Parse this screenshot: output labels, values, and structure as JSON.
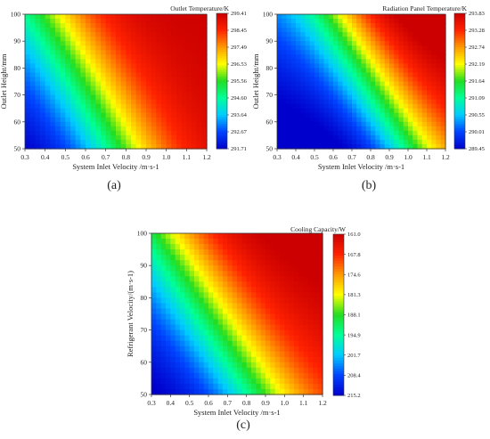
{
  "chart_data": [
    {
      "type": "heatmap",
      "panel_label": "(a)",
      "title": "Outlet Temperature/K",
      "xlabel": "System Inlet Velocity /m·s-1",
      "ylabel": "Outlet Height/mm",
      "x_ticks": [
        "0.3",
        "0.4",
        "0.5",
        "0.6",
        "0.7",
        "0.8",
        "0.9",
        "1.0",
        "1.1",
        "1.2"
      ],
      "y_ticks": [
        "50",
        "60",
        "70",
        "80",
        "90",
        "100"
      ],
      "xlim": [
        0.3,
        1.2
      ],
      "ylim": [
        50,
        100
      ],
      "colorbar": {
        "ticks": [
          "291.71",
          "292.67",
          "293.64",
          "294.60",
          "295.56",
          "296.53",
          "297.49",
          "298.45",
          "299.41"
        ],
        "min": 291.71,
        "max": 299.41,
        "colors": [
          "#0000cc",
          "#0044ff",
          "#00ccff",
          "#00ff99",
          "#22dd22",
          "#ffff00",
          "#ff9900",
          "#ff2200",
          "#cc0000"
        ]
      },
      "grid": false,
      "legend": "colorbar-right"
    },
    {
      "type": "heatmap",
      "panel_label": "(b)",
      "title": "Radiation Panel Temperature/K",
      "xlabel": "System Inlet Velocity /m·s-1",
      "ylabel": "Outlet Height/mm",
      "x_ticks": [
        "0.3",
        "0.4",
        "0.5",
        "0.6",
        "0.7",
        "0.8",
        "0.9",
        "1.0",
        "1.1",
        "1.2"
      ],
      "y_ticks": [
        "50",
        "60",
        "70",
        "80",
        "90",
        "100"
      ],
      "xlim": [
        0.3,
        1.2
      ],
      "ylim": [
        50,
        100
      ],
      "colorbar": {
        "ticks": [
          "289.45",
          "290.01",
          "290.55",
          "291.09",
          "291.64",
          "292.19",
          "292.74",
          "293.28",
          "293.83"
        ],
        "min": 289.45,
        "max": 293.83,
        "colors": [
          "#0000cc",
          "#0044ff",
          "#00ccff",
          "#00ff99",
          "#22dd22",
          "#ffff00",
          "#ff9900",
          "#ff2200",
          "#cc0000"
        ]
      },
      "grid": false,
      "legend": "colorbar-right"
    },
    {
      "type": "heatmap",
      "panel_label": "(c)",
      "title": "Cooling Capacity/W",
      "xlabel": "System Inlet Velocity /m·s-1",
      "ylabel": "Refrigerant Velocity/(m·s-1)",
      "x_ticks": [
        "0.3",
        "0.4",
        "0.5",
        "0.6",
        "0.7",
        "0.8",
        "0.9",
        "1.0",
        "1.1",
        "1.2"
      ],
      "y_ticks": [
        "50",
        "60",
        "70",
        "80",
        "90",
        "100"
      ],
      "xlim": [
        0.3,
        1.2
      ],
      "ylim": [
        50,
        100
      ],
      "colorbar": {
        "ticks": [
          "215.2",
          "208.4",
          "201.7",
          "194.9",
          "188.1",
          "181.3",
          "174.6",
          "167.8",
          "161.0"
        ],
        "min": 161.0,
        "max": 215.2,
        "colors": [
          "#0000cc",
          "#0044ff",
          "#00ccff",
          "#00ff99",
          "#22dd22",
          "#ffff00",
          "#ff9900",
          "#ff2200",
          "#cc0000"
        ]
      },
      "grid": false,
      "legend": "colorbar-right"
    }
  ]
}
